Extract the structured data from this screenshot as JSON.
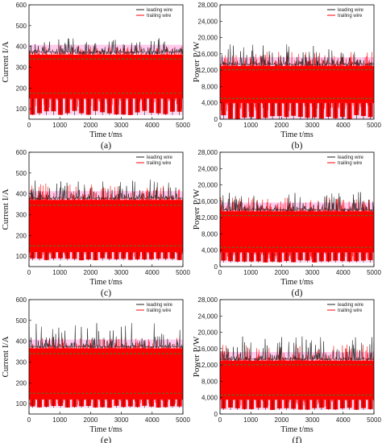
{
  "colors": {
    "leading": "#222222",
    "trailing": "#ff0000",
    "band": "#2e8b2e",
    "halo": "#ff66cc"
  },
  "chart_data": [
    {
      "id": "a",
      "type": "line",
      "panel_label": "(a)",
      "xlabel": "Time t/ms",
      "ylabel": "Current I/A",
      "xlim": [
        0,
        5000
      ],
      "ylim": [
        50,
        600
      ],
      "xticks": [
        "0",
        "1000",
        "2000",
        "3000",
        "4000",
        "5000"
      ],
      "yticks": [
        "100",
        "200",
        "300",
        "400",
        "500",
        "600"
      ],
      "series": [
        {
          "name": "leading wire",
          "high": 375,
          "low": 130,
          "peak": 440,
          "dip": 70
        },
        {
          "name": "trailing wire",
          "high": 360,
          "low": 150,
          "peak": 400,
          "dip": 100
        }
      ]
    },
    {
      "id": "b",
      "type": "line",
      "panel_label": "(b)",
      "xlabel": "Time t/ms",
      "ylabel": "Power P/W",
      "xlim": [
        0,
        5000
      ],
      "ylim": [
        0,
        28000
      ],
      "xticks": [
        "0",
        "1000",
        "2000",
        "3000",
        "4000",
        "5000"
      ],
      "yticks": [
        "0",
        "4,000",
        "8,000",
        "12,000",
        "16,000",
        "20,000",
        "24,000",
        "28,000"
      ],
      "series": [
        {
          "name": "leading wire",
          "high": 13500,
          "low": 3500,
          "peak": 18500,
          "dip": 0
        },
        {
          "name": "trailing wire",
          "high": 13000,
          "low": 4000,
          "peak": 16500,
          "dip": 1500
        }
      ]
    },
    {
      "id": "c",
      "type": "line",
      "panel_label": "(c)",
      "xlabel": "Time t/ms",
      "ylabel": "Current I/A",
      "xlim": [
        0,
        5000
      ],
      "ylim": [
        50,
        600
      ],
      "xticks": [
        "0",
        "1000",
        "2000",
        "3000",
        "4000",
        "5000"
      ],
      "yticks": [
        "100",
        "200",
        "300",
        "400",
        "500",
        "600"
      ],
      "series": [
        {
          "name": "leading wire",
          "high": 380,
          "low": 110,
          "peak": 470,
          "dip": 80
        },
        {
          "name": "trailing wire",
          "high": 370,
          "low": 120,
          "peak": 450,
          "dip": 90
        }
      ]
    },
    {
      "id": "d",
      "type": "line",
      "panel_label": "(d)",
      "xlabel": "Time t/ms",
      "ylabel": "Power P/W",
      "xlim": [
        0,
        5000
      ],
      "ylim": [
        0,
        28000
      ],
      "xticks": [
        "0",
        "1000",
        "2000",
        "3000",
        "4000",
        "5000"
      ],
      "yticks": [
        "0",
        "4,000",
        "8,000",
        "12,000",
        "16,000",
        "20,000",
        "24,000",
        "28,000"
      ],
      "series": [
        {
          "name": "leading wire",
          "high": 14000,
          "low": 3000,
          "peak": 18500,
          "dip": 1000
        },
        {
          "name": "trailing wire",
          "high": 13500,
          "low": 3500,
          "peak": 17000,
          "dip": 1500
        }
      ]
    },
    {
      "id": "e",
      "type": "line",
      "panel_label": "(e)",
      "xlabel": "Time t/ms",
      "ylabel": "Current I/A",
      "xlim": [
        0,
        5000
      ],
      "ylim": [
        50,
        600
      ],
      "xticks": [
        "0",
        "1000",
        "2000",
        "3000",
        "4000",
        "5000"
      ],
      "yticks": [
        "100",
        "200",
        "300",
        "400",
        "500",
        "600"
      ],
      "series": [
        {
          "name": "leading wire",
          "high": 375,
          "low": 110,
          "peak": 490,
          "dip": 80
        },
        {
          "name": "trailing wire",
          "high": 365,
          "low": 120,
          "peak": 420,
          "dip": 90
        }
      ]
    },
    {
      "id": "f",
      "type": "line",
      "panel_label": "(f)",
      "xlabel": "Time t/ms",
      "ylabel": "Power P/W",
      "xlim": [
        0,
        5000
      ],
      "ylim": [
        0,
        28000
      ],
      "xticks": [
        "0",
        "1000",
        "2000",
        "3000",
        "4000",
        "5000"
      ],
      "yticks": [
        "0",
        "4,000",
        "8,000",
        "12,000",
        "16,000",
        "20,000",
        "24,000",
        "28,000"
      ],
      "series": [
        {
          "name": "leading wire",
          "high": 13500,
          "low": 3000,
          "peak": 19000,
          "dip": 1000
        },
        {
          "name": "trailing wire",
          "high": 13000,
          "low": 3500,
          "peak": 17000,
          "dip": 1500
        }
      ]
    }
  ]
}
